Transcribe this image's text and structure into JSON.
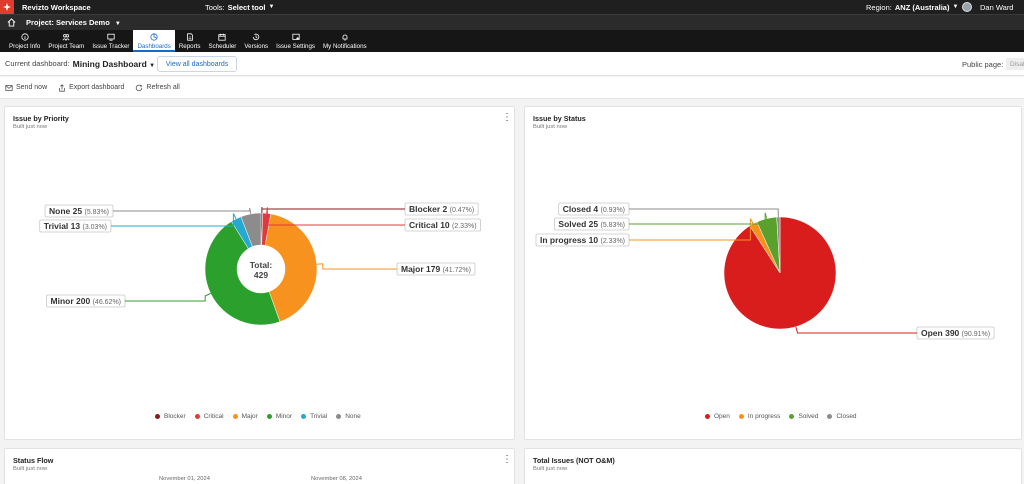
{
  "app": {
    "title": "Revizto Workspace"
  },
  "topbar": {
    "tools_label": "Tools:",
    "tools_value": "Select tool",
    "region_label": "Region:",
    "region_value": "ANZ (Australia)",
    "user_name": "Dan Ward"
  },
  "project": {
    "label": "Project: Services Demo"
  },
  "nav": {
    "tabs": [
      {
        "label": "Project Info",
        "icon": "info-icon"
      },
      {
        "label": "Project Team",
        "icon": "team-icon"
      },
      {
        "label": "Issue Tracker",
        "icon": "issue-icon"
      },
      {
        "label": "Dashboards",
        "icon": "dashboard-icon",
        "active": true
      },
      {
        "label": "Reports",
        "icon": "report-icon"
      },
      {
        "label": "Scheduler",
        "icon": "scheduler-icon"
      },
      {
        "label": "Versions",
        "icon": "versions-icon"
      },
      {
        "label": "Issue Settings",
        "icon": "settings-icon"
      },
      {
        "label": "My Notifications",
        "icon": "bell-icon"
      }
    ]
  },
  "dashboard": {
    "current_label": "Current dashboard:",
    "current_name": "Mining Dashboard",
    "view_all": "View all dashboards",
    "public_label": "Public page:",
    "public_value": "Disab"
  },
  "actions": {
    "send_now": "Send now",
    "export": "Export dashboard",
    "refresh": "Refresh all"
  },
  "panels": {
    "priority": {
      "title": "Issue by Priority",
      "subtitle": "Built just now"
    },
    "status": {
      "title": "Issue by Status",
      "subtitle": "Built just now"
    },
    "flow": {
      "title": "Status Flow",
      "subtitle": "Built just now",
      "date1": "November 01, 2024",
      "date2": "November 08, 2024"
    },
    "total": {
      "title": "Total Issues (NOT O&M)",
      "subtitle": "Built just now"
    }
  },
  "chart_data": [
    {
      "type": "pie",
      "title": "Issue by Priority",
      "donut": true,
      "center_label": "Total:",
      "center_value": "429",
      "slices": [
        {
          "name": "Blocker",
          "value": 2,
          "pct": "(0.47%)",
          "color": "#8b1a1a"
        },
        {
          "name": "Critical",
          "value": 10,
          "pct": "(2.33%)",
          "color": "#e03b3b"
        },
        {
          "name": "Major",
          "value": 179,
          "pct": "(41.72%)",
          "color": "#f7921e"
        },
        {
          "name": "Minor",
          "value": 200,
          "pct": "(46.62%)",
          "color": "#2ca02c"
        },
        {
          "name": "Trivial",
          "value": 13,
          "pct": "(3.03%)",
          "color": "#25a9d3"
        },
        {
          "name": "None",
          "value": 25,
          "pct": "(5.83%)",
          "color": "#8c8c8c"
        }
      ],
      "legend": [
        "Blocker",
        "Critical",
        "Major",
        "Minor",
        "Trivial",
        "None"
      ]
    },
    {
      "type": "pie",
      "title": "Issue by Status",
      "donut": false,
      "slices": [
        {
          "name": "Open",
          "value": 390,
          "pct": "(90.91%)",
          "color": "#d91c1c"
        },
        {
          "name": "In progress",
          "value": 10,
          "pct": "(2.33%)",
          "color": "#f7921e"
        },
        {
          "name": "Solved",
          "value": 25,
          "pct": "(5.83%)",
          "color": "#5aa02c"
        },
        {
          "name": "Closed",
          "value": 4,
          "pct": "(0.93%)",
          "color": "#8c8c8c"
        }
      ],
      "legend": [
        "Open",
        "In progress",
        "Solved",
        "Closed"
      ]
    }
  ]
}
